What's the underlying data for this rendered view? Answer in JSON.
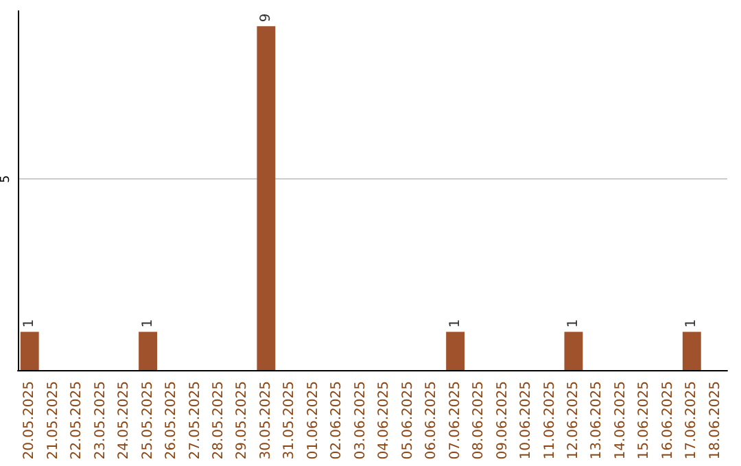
{
  "chart_data": {
    "type": "bar",
    "categories": [
      "20.05.2025",
      "21.05.2025",
      "22.05.2025",
      "23.05.2025",
      "24.05.2025",
      "25.05.2025",
      "26.05.2025",
      "27.05.2025",
      "28.05.2025",
      "29.05.2025",
      "30.05.2025",
      "31.05.2025",
      "01.06.2025",
      "02.06.2025",
      "03.06.2025",
      "04.06.2025",
      "05.06.2025",
      "06.06.2025",
      "07.06.2025",
      "08.06.2025",
      "09.06.2025",
      "10.06.2025",
      "11.06.2025",
      "12.06.2025",
      "13.06.2025",
      "14.06.2025",
      "15.06.2025",
      "16.06.2025",
      "17.06.2025",
      "18.06.2025"
    ],
    "values": [
      1,
      0,
      0,
      0,
      0,
      1,
      0,
      0,
      0,
      0,
      9,
      0,
      0,
      0,
      0,
      0,
      0,
      0,
      1,
      0,
      0,
      0,
      0,
      1,
      0,
      0,
      0,
      0,
      1,
      0
    ],
    "value_labels": [
      "1",
      null,
      null,
      null,
      null,
      "1",
      null,
      null,
      null,
      null,
      "9",
      null,
      null,
      null,
      null,
      null,
      null,
      null,
      "1",
      null,
      null,
      null,
      null,
      "1",
      null,
      null,
      null,
      null,
      "1",
      null
    ],
    "color": "#a0522d",
    "ylim": [
      0,
      9.4
    ],
    "yticks": [
      5
    ],
    "grid": "y"
  }
}
